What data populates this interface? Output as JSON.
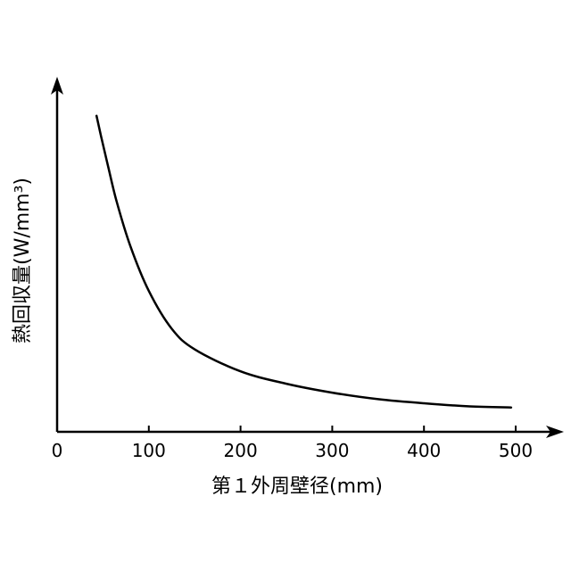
{
  "chart_data": {
    "type": "line",
    "title": "",
    "xlabel": "第１外周壁径(mm)",
    "ylabel": "熱回収量(W/mm³)",
    "xlim": [
      0,
      500
    ],
    "x_ticks": [
      0,
      100,
      200,
      300,
      400,
      500
    ],
    "y_ticks_labeled": false,
    "grid": false,
    "legend": "none",
    "series": [
      {
        "color": "#000000",
        "x": [
          43,
          48,
          55,
          65,
          80,
          100,
          125,
          150,
          200,
          250,
          300,
          350,
          400,
          450,
          495
        ],
        "y": [
          0.92,
          0.86,
          0.78,
          0.67,
          0.54,
          0.41,
          0.3,
          0.24,
          0.176,
          0.14,
          0.114,
          0.095,
          0.083,
          0.074,
          0.071
        ]
      }
    ]
  }
}
